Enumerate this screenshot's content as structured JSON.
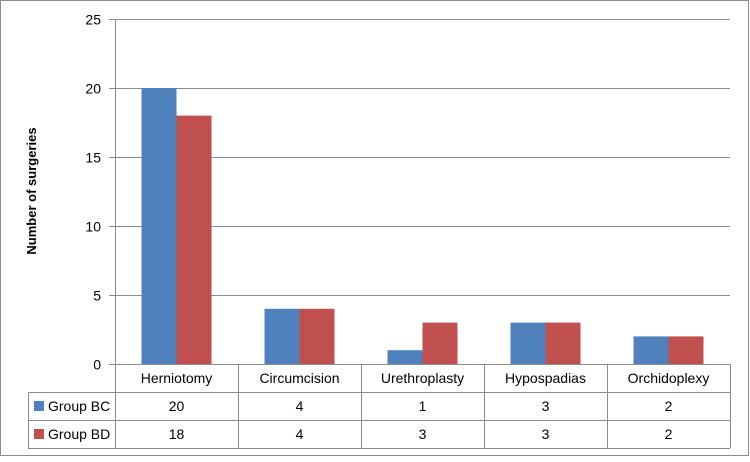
{
  "chart_data": {
    "type": "bar",
    "title": "",
    "xlabel": "",
    "ylabel": "Number of surgeries",
    "ylim": [
      0,
      25
    ],
    "yticks": [
      0,
      5,
      10,
      15,
      20,
      25
    ],
    "grid": true,
    "legend": "data-table",
    "categories": [
      "Herniotomy",
      "Circumcision",
      "Urethroplasty",
      "Hypospadias",
      "Orchidoplexy"
    ],
    "series": [
      {
        "name": "Group BC",
        "color": "#4f81bd",
        "values": [
          20,
          4,
          1,
          3,
          2
        ]
      },
      {
        "name": "Group BD",
        "color": "#c0504d",
        "values": [
          18,
          4,
          3,
          3,
          2
        ]
      }
    ]
  }
}
